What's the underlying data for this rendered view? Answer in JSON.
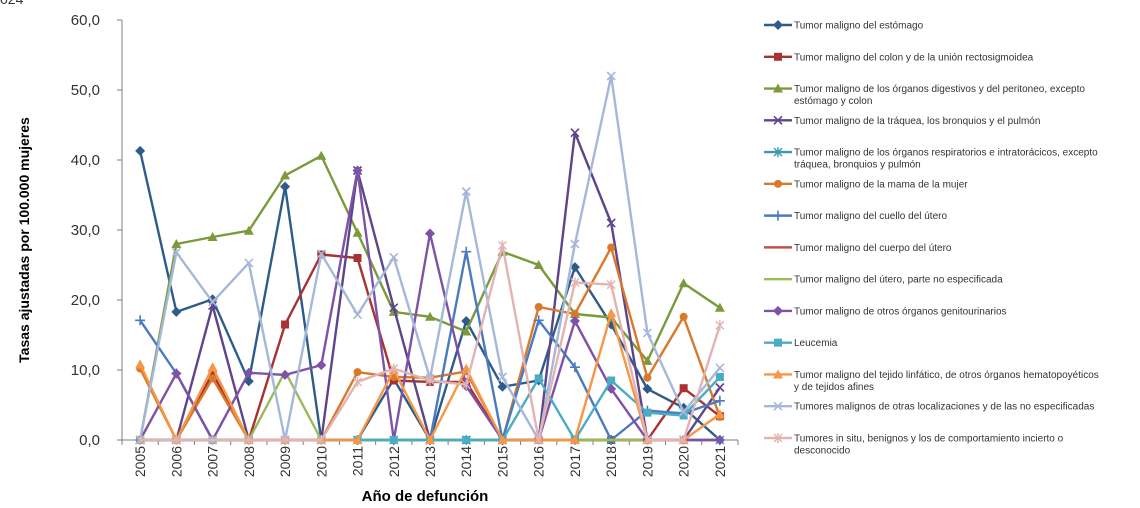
{
  "corner_text": "024",
  "chart_data": {
    "type": "line",
    "xlabel": "Año de defunción",
    "ylabel": "Tasas ajustadas por 100.000 mujeres",
    "ylim": [
      0,
      60
    ],
    "yticks": [
      "0,0",
      "10,0",
      "20,0",
      "30,0",
      "40,0",
      "50,0",
      "60,0"
    ],
    "x": [
      "2005",
      "2006",
      "2007",
      "2008",
      "2009",
      "2010",
      "2011",
      "2012",
      "2013",
      "2014",
      "2015",
      "2016",
      "2017",
      "2018",
      "2019",
      "2020",
      "2021"
    ],
    "legend_position": "right",
    "series": [
      {
        "name": "Tumor maligno del estómago",
        "color": "#2E5C8A",
        "marker": "diamond",
        "values": [
          41.3,
          18.3,
          20.1,
          8.4,
          36.2,
          0,
          0,
          8.7,
          0,
          17.0,
          7.6,
          8.5,
          24.7,
          16.5,
          7.3,
          4.6,
          0
        ]
      },
      {
        "name": "Tumor maligno del colon y de la unión rectosigmoidea",
        "color": "#A83232",
        "marker": "square",
        "values": [
          0,
          0,
          9.5,
          0,
          16.5,
          26.5,
          26.0,
          8.5,
          8.3,
          8.3,
          0,
          0,
          0,
          0,
          0,
          7.4,
          3.4
        ]
      },
      {
        "name": "Tumor maligno de los órganos digestivos y del peritoneo, excepto estómago y colon",
        "color": "#7A9A3C",
        "marker": "triangle",
        "values": [
          0,
          28.0,
          29.0,
          29.9,
          37.8,
          40.6,
          29.6,
          18.3,
          17.6,
          15.5,
          26.9,
          25.0,
          18.0,
          17.5,
          11.3,
          22.4,
          18.9
        ]
      },
      {
        "name": "Tumor maligno de la tráquea, los bronquios y el pulmón",
        "color": "#5E4488",
        "marker": "x",
        "values": [
          0,
          0,
          19.2,
          0,
          0,
          0,
          38.5,
          18.9,
          0,
          0,
          0,
          0,
          43.9,
          31.0,
          0,
          0,
          7.5
        ]
      },
      {
        "name": "Tumor maligno de los órganos respiratorios e intratorácicos, excepto tráquea, bronquios y pulmón",
        "color": "#3A9AB2",
        "marker": "star",
        "values": [
          0,
          0,
          0,
          0,
          0,
          0,
          0,
          0,
          0,
          0,
          0,
          0,
          0,
          0,
          0,
          0,
          0
        ]
      },
      {
        "name": "Tumor maligno de la mama de la mujer",
        "color": "#D9792B",
        "marker": "circle",
        "values": [
          10.2,
          0,
          8.8,
          0,
          0,
          0,
          9.7,
          9.0,
          8.9,
          9.8,
          0,
          19.0,
          18.0,
          27.5,
          8.9,
          17.6,
          3.3
        ]
      },
      {
        "name": "Tumor maligno del cuello del útero",
        "color": "#4A7BC0",
        "marker": "plus",
        "values": [
          17.1,
          9.5,
          0,
          0,
          0,
          0,
          0,
          0,
          0,
          26.9,
          0,
          17.1,
          10.4,
          0,
          4.2,
          3.8,
          5.6
        ]
      },
      {
        "name": "Tumor maligno del cuerpo del útero",
        "color": "#C0504D",
        "marker": "line",
        "values": [
          0,
          0,
          0,
          0,
          0,
          0,
          0,
          0,
          0,
          0,
          0,
          0,
          0,
          0,
          0,
          0,
          0
        ]
      },
      {
        "name": "Tumor maligno del útero, parte no especificada",
        "color": "#9BBB59",
        "marker": "line",
        "values": [
          0,
          0,
          0,
          0,
          9.8,
          0,
          0,
          0,
          0,
          0,
          0,
          0,
          0,
          0,
          0,
          0,
          0
        ]
      },
      {
        "name": "Tumor maligno de otros órganos genitourinarios",
        "color": "#7E52A8",
        "marker": "diamond",
        "values": [
          0,
          9.5,
          0,
          9.6,
          9.3,
          10.7,
          38.5,
          0,
          29.5,
          7.7,
          0,
          0,
          17.0,
          7.3,
          0,
          0,
          0
        ]
      },
      {
        "name": "Leucemia",
        "color": "#4BACC6",
        "marker": "square",
        "values": [
          0,
          0,
          0,
          0,
          0,
          0,
          0,
          0,
          0,
          0,
          0,
          8.8,
          0,
          8.5,
          3.9,
          3.5,
          9.0
        ]
      },
      {
        "name": "Tumor maligno del tejido linfático, de otros órganos hematopoyéticos y de tejidos afines",
        "color": "#F79646",
        "marker": "triangle",
        "values": [
          10.8,
          0,
          10.4,
          0,
          0,
          0,
          0,
          10.0,
          0,
          10.2,
          0,
          0,
          0,
          18.1,
          0,
          0,
          3.7
        ]
      },
      {
        "name": "Tumores malignos de otras localizaciones y de las no especificadas",
        "color": "#A5B8D8",
        "marker": "x",
        "values": [
          0,
          26.8,
          19.7,
          25.3,
          0,
          26.6,
          17.9,
          26.1,
          8.8,
          35.5,
          9.0,
          0,
          28.0,
          52.0,
          15.3,
          4.0,
          10.3
        ]
      },
      {
        "name": "Tumores in situ, benignos y los de comportamiento incierto o desconocido",
        "color": "#E3B3B2",
        "marker": "star",
        "values": [
          0,
          0,
          0,
          0,
          0,
          0,
          8.3,
          10.2,
          8.5,
          7.9,
          27.8,
          0,
          22.5,
          22.2,
          0,
          0,
          16.4
        ]
      }
    ]
  },
  "colors": {
    "axis": "#7F7F7F",
    "text": "#333333"
  }
}
